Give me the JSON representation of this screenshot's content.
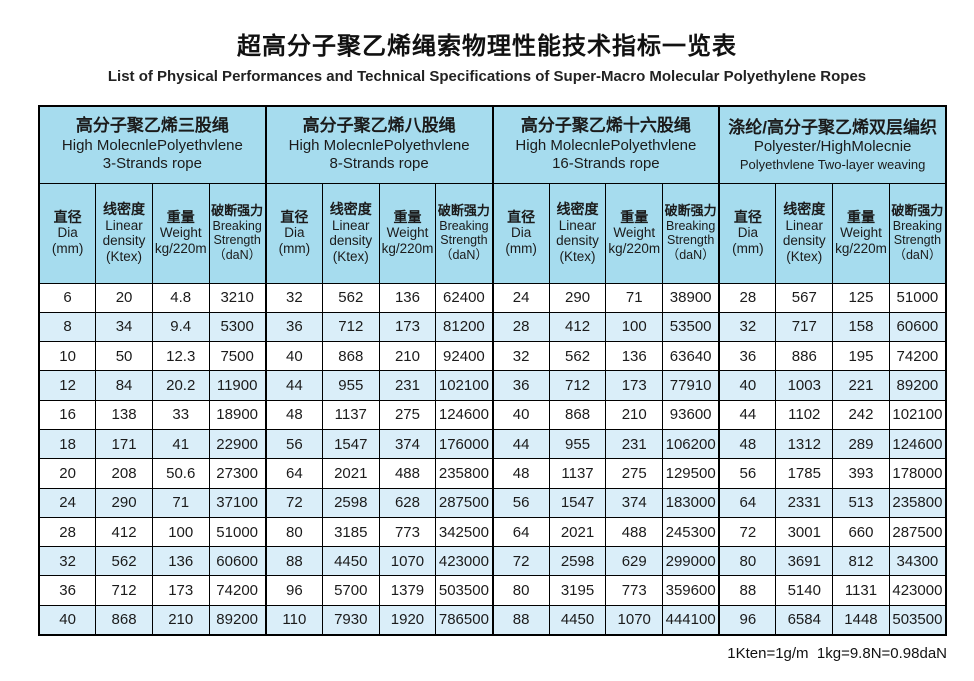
{
  "page": {
    "title": "超高分子聚乙烯绳索物理性能技术指标一览表",
    "subtitle": "List of Physical Performances and Technical Specifications of Super-Macro Molecular Polyethylene Ropes",
    "footnote": "1Kten=1g/m  1kg=9.8N=0.98daN"
  },
  "colors": {
    "header_bg": "#a6dcee",
    "alt_row_bg": "#daeef9",
    "row_bg": "#ffffff",
    "border": "#000000",
    "text": "#1b1b1b"
  },
  "table": {
    "groups": [
      {
        "cn": "高分子聚乙烯三股绳",
        "en1": "High MolecnlePolyethvlene",
        "en2": "3-Strands rope"
      },
      {
        "cn": "高分子聚乙烯八股绳",
        "en1": "High MolecnlePolyethvlene",
        "en2": "8-Strands rope"
      },
      {
        "cn": "高分子聚乙烯十六股绳",
        "en1": "High MolecnlePolyethvlene",
        "en2": "16-Strands rope"
      },
      {
        "cn": "涤纶/高分子聚乙烯双层编织",
        "en1": "Polyester/HighMolecnie",
        "en2": "Polyethvlene Two-layer weaving"
      }
    ],
    "columns": [
      {
        "cn": "直径",
        "en": "Dia\n(mm)"
      },
      {
        "cn": "线密度",
        "en": "Linear\ndensity\n(Ktex)"
      },
      {
        "cn": "重量",
        "en": "Weight\nkg/220m"
      },
      {
        "cn": "破断强力",
        "en": "Breaking\nStrength\n（daN）"
      }
    ],
    "rows": [
      [
        "6",
        "20",
        "4.8",
        "3210",
        "32",
        "562",
        "136",
        "62400",
        "24",
        "290",
        "71",
        "38900",
        "28",
        "567",
        "125",
        "51000"
      ],
      [
        "8",
        "34",
        "9.4",
        "5300",
        "36",
        "712",
        "173",
        "81200",
        "28",
        "412",
        "100",
        "53500",
        "32",
        "717",
        "158",
        "60600"
      ],
      [
        "10",
        "50",
        "12.3",
        "7500",
        "40",
        "868",
        "210",
        "92400",
        "32",
        "562",
        "136",
        "63640",
        "36",
        "886",
        "195",
        "74200"
      ],
      [
        "12",
        "84",
        "20.2",
        "11900",
        "44",
        "955",
        "231",
        "102100",
        "36",
        "712",
        "173",
        "77910",
        "40",
        "1003",
        "221",
        "89200"
      ],
      [
        "16",
        "138",
        "33",
        "18900",
        "48",
        "1137",
        "275",
        "124600",
        "40",
        "868",
        "210",
        "93600",
        "44",
        "1102",
        "242",
        "102100"
      ],
      [
        "18",
        "171",
        "41",
        "22900",
        "56",
        "1547",
        "374",
        "176000",
        "44",
        "955",
        "231",
        "106200",
        "48",
        "1312",
        "289",
        "124600"
      ],
      [
        "20",
        "208",
        "50.6",
        "27300",
        "64",
        "2021",
        "488",
        "235800",
        "48",
        "1137",
        "275",
        "129500",
        "56",
        "1785",
        "393",
        "178000"
      ],
      [
        "24",
        "290",
        "71",
        "37100",
        "72",
        "2598",
        "628",
        "287500",
        "56",
        "1547",
        "374",
        "183000",
        "64",
        "2331",
        "513",
        "235800"
      ],
      [
        "28",
        "412",
        "100",
        "51000",
        "80",
        "3185",
        "773",
        "342500",
        "64",
        "2021",
        "488",
        "245300",
        "72",
        "3001",
        "660",
        "287500"
      ],
      [
        "32",
        "562",
        "136",
        "60600",
        "88",
        "4450",
        "1070",
        "423000",
        "72",
        "2598",
        "629",
        "299000",
        "80",
        "3691",
        "812",
        "34300"
      ],
      [
        "36",
        "712",
        "173",
        "74200",
        "96",
        "5700",
        "1379",
        "503500",
        "80",
        "3195",
        "773",
        "359600",
        "88",
        "5140",
        "1131",
        "423000"
      ],
      [
        "40",
        "868",
        "210",
        "89200",
        "110",
        "7930",
        "1920",
        "786500",
        "88",
        "4450",
        "1070",
        "444100",
        "96",
        "6584",
        "1448",
        "503500"
      ]
    ]
  }
}
